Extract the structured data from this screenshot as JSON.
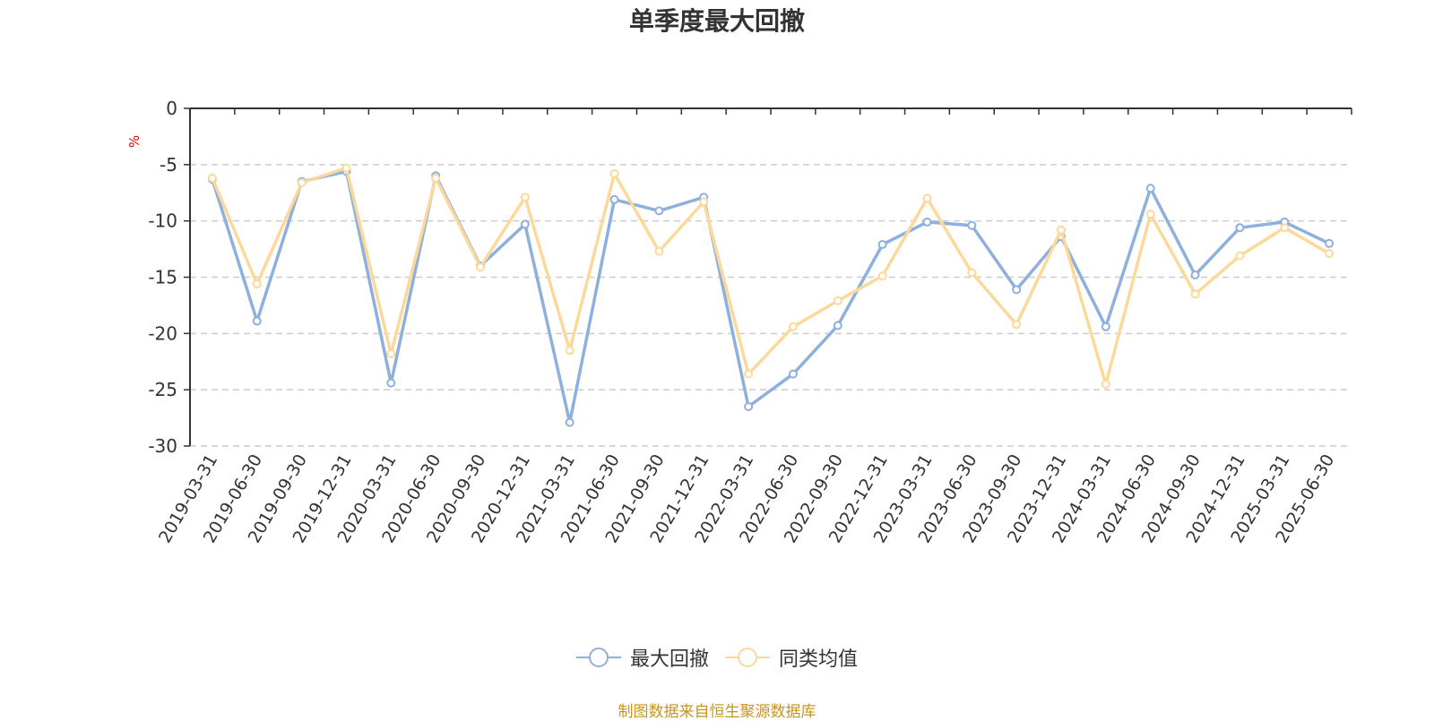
{
  "chart_data": {
    "type": "line",
    "title": "单季度最大回撤",
    "ylabel": "%",
    "xlabel": "",
    "ylim": [
      -30,
      0
    ],
    "yticks": [
      0,
      -5,
      -10,
      -15,
      -20,
      -25,
      -30
    ],
    "grid": true,
    "legend_position": "bottom-center",
    "categories": [
      "2019-03-31",
      "2019-06-30",
      "2019-09-30",
      "2019-12-31",
      "2020-03-31",
      "2020-06-30",
      "2020-09-30",
      "2020-12-31",
      "2021-03-31",
      "2021-06-30",
      "2021-09-30",
      "2021-12-31",
      "2022-03-31",
      "2022-06-30",
      "2022-09-30",
      "2022-12-31",
      "2023-03-31",
      "2023-06-30",
      "2023-09-30",
      "2023-12-31",
      "2024-03-31",
      "2024-06-30",
      "2024-09-30",
      "2024-12-31",
      "2025-03-31",
      "2025-06-30"
    ],
    "series": [
      {
        "name": "最大回撤",
        "color": "#8eb0dc",
        "values": [
          -6.3,
          -18.9,
          -6.5,
          -5.6,
          -24.4,
          -6.0,
          -14.0,
          -10.3,
          -27.9,
          -8.1,
          -9.1,
          -7.9,
          -26.5,
          -23.6,
          -19.3,
          -12.1,
          -10.1,
          -10.4,
          -16.1,
          -11.4,
          -19.4,
          -7.1,
          -14.8,
          -10.6,
          -10.1,
          -12.0
        ]
      },
      {
        "name": "同类均值",
        "color": "#fcd99a",
        "values": [
          -6.2,
          -15.6,
          -6.6,
          -5.3,
          -21.8,
          -6.2,
          -14.1,
          -7.9,
          -21.5,
          -5.8,
          -12.7,
          -8.3,
          -23.6,
          -19.4,
          -17.1,
          -14.9,
          -8.0,
          -14.6,
          -19.2,
          -10.8,
          -24.5,
          -9.4,
          -16.5,
          -13.1,
          -10.6,
          -12.9
        ]
      }
    ]
  },
  "source": "制图数据来自恒生聚源数据库"
}
